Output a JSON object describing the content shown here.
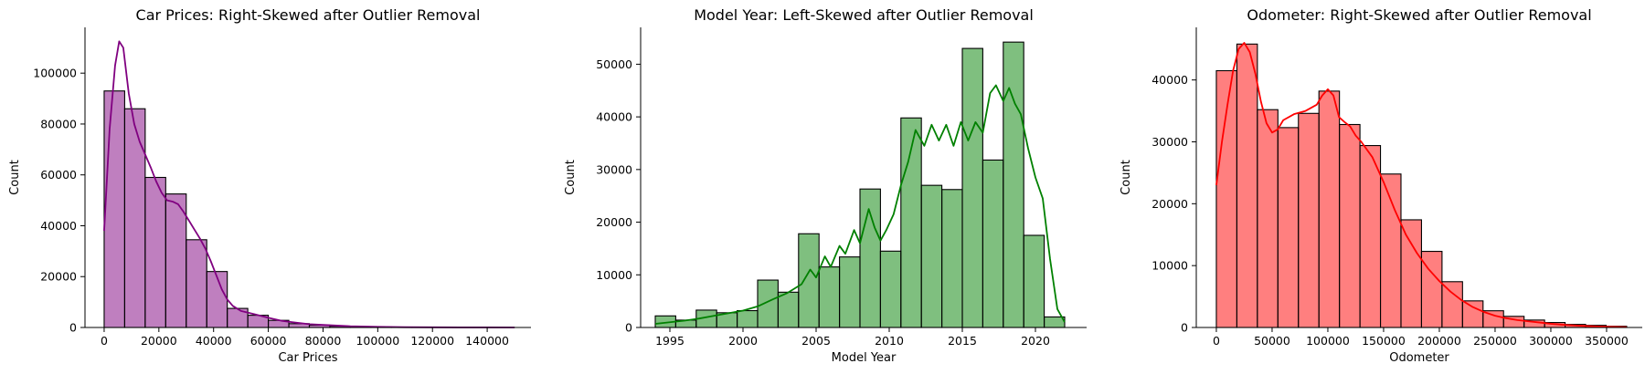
{
  "chart_data": [
    {
      "type": "histogram",
      "title": "Car Prices: Right-Skewed after Outlier Removal",
      "xlabel": "Car Prices",
      "ylabel": "Count",
      "color": "#800080",
      "kde": true,
      "xlim": [
        -7000,
        156000
      ],
      "ylim": [
        0,
        118000
      ],
      "xticks": [
        0,
        20000,
        40000,
        60000,
        80000,
        100000,
        120000,
        140000
      ],
      "yticks": [
        0,
        20000,
        40000,
        60000,
        80000,
        100000
      ],
      "bins": [
        0,
        7500,
        15000,
        22500,
        30000,
        37500,
        45000,
        52500,
        60000,
        67500,
        75000,
        82500,
        90000,
        97500,
        105000,
        112500,
        120000,
        127500,
        135000,
        142500,
        150000
      ],
      "counts": [
        93000,
        86000,
        59000,
        52500,
        34500,
        22000,
        7500,
        4800,
        2800,
        1500,
        900,
        500,
        300,
        200,
        100,
        80,
        50,
        40,
        30,
        20
      ],
      "kde_points": [
        [
          0,
          38000
        ],
        [
          2000,
          78000
        ],
        [
          4000,
          103000
        ],
        [
          5500,
          112500
        ],
        [
          7000,
          110000
        ],
        [
          9000,
          92000
        ],
        [
          11000,
          80000
        ],
        [
          13000,
          73000
        ],
        [
          15000,
          68000
        ],
        [
          17000,
          63000
        ],
        [
          19000,
          57500
        ],
        [
          21000,
          53000
        ],
        [
          23000,
          50000
        ],
        [
          25000,
          49500
        ],
        [
          27000,
          48500
        ],
        [
          29000,
          45500
        ],
        [
          31000,
          42000
        ],
        [
          33000,
          38500
        ],
        [
          35000,
          35000
        ],
        [
          37000,
          31000
        ],
        [
          39000,
          26000
        ],
        [
          41000,
          20500
        ],
        [
          43000,
          15000
        ],
        [
          45000,
          11000
        ],
        [
          47000,
          8500
        ],
        [
          50000,
          6500
        ],
        [
          55000,
          5200
        ],
        [
          60000,
          3800
        ],
        [
          65000,
          2600
        ],
        [
          70000,
          1900
        ],
        [
          75000,
          1300
        ],
        [
          80000,
          1000
        ],
        [
          90000,
          500
        ],
        [
          100000,
          250
        ],
        [
          110000,
          120
        ],
        [
          120000,
          60
        ],
        [
          130000,
          30
        ],
        [
          140000,
          15
        ],
        [
          150000,
          5
        ]
      ]
    },
    {
      "type": "histogram",
      "title": "Model Year: Left-Skewed after Outlier Removal",
      "xlabel": "Model Year",
      "ylabel": "Count",
      "color": "#008000",
      "kde": true,
      "xlim": [
        1993,
        2023.5
      ],
      "ylim": [
        0,
        57000
      ],
      "xticks": [
        1995,
        2000,
        2005,
        2010,
        2015,
        2020
      ],
      "yticks": [
        0,
        10000,
        20000,
        30000,
        40000,
        50000
      ],
      "bins": [
        1994,
        1995.4,
        1996.8,
        1998.2,
        1999.6,
        2001,
        2002.4,
        2003.8,
        2005.2,
        2006.6,
        2008,
        2009.4,
        2010.8,
        2012.2,
        2013.6,
        2015,
        2016.4,
        2017.8,
        2019.2,
        2020.6,
        2022
      ],
      "counts": [
        2200,
        1400,
        3300,
        2800,
        3200,
        9000,
        6700,
        17800,
        11500,
        13400,
        26300,
        14500,
        39800,
        27000,
        26200,
        53000,
        31800,
        54200,
        17500,
        2000
      ],
      "kde_points": [
        [
          1994,
          700
        ],
        [
          1995,
          1000
        ],
        [
          1996,
          1300
        ],
        [
          1997,
          1700
        ],
        [
          1998,
          2200
        ],
        [
          1999,
          2700
        ],
        [
          2000,
          3200
        ],
        [
          2001,
          4000
        ],
        [
          2002,
          5300
        ],
        [
          2003,
          6500
        ],
        [
          2004,
          8200
        ],
        [
          2004.6,
          11000
        ],
        [
          2005,
          9500
        ],
        [
          2005.6,
          13500
        ],
        [
          2006,
          11500
        ],
        [
          2006.6,
          15500
        ],
        [
          2007,
          14000
        ],
        [
          2007.6,
          18500
        ],
        [
          2008,
          16000
        ],
        [
          2008.6,
          22500
        ],
        [
          2009,
          19000
        ],
        [
          2009.4,
          16500
        ],
        [
          2009.8,
          18500
        ],
        [
          2010.3,
          21500
        ],
        [
          2010.8,
          27000
        ],
        [
          2011.3,
          31500
        ],
        [
          2011.8,
          37500
        ],
        [
          2012.4,
          34500
        ],
        [
          2012.9,
          38500
        ],
        [
          2013.4,
          35500
        ],
        [
          2013.9,
          38500
        ],
        [
          2014.4,
          34500
        ],
        [
          2014.9,
          39000
        ],
        [
          2015.4,
          35500
        ],
        [
          2015.9,
          39000
        ],
        [
          2016.4,
          37000
        ],
        [
          2016.9,
          44500
        ],
        [
          2017.3,
          46000
        ],
        [
          2017.8,
          43000
        ],
        [
          2018.2,
          45500
        ],
        [
          2018.6,
          42500
        ],
        [
          2019,
          40500
        ],
        [
          2019.5,
          34000
        ],
        [
          2020,
          28500
        ],
        [
          2020.5,
          24500
        ],
        [
          2021,
          13000
        ],
        [
          2021.5,
          3500
        ],
        [
          2022,
          1000
        ]
      ]
    },
    {
      "type": "histogram",
      "title": "Odometer: Right-Skewed after Outlier Removal",
      "xlabel": "Odometer",
      "ylabel": "Count",
      "color": "#ff0000",
      "kde": true,
      "xlim": [
        -18000,
        382000
      ],
      "ylim": [
        0,
        48500
      ],
      "xticks": [
        0,
        50000,
        100000,
        150000,
        200000,
        250000,
        300000,
        350000
      ],
      "yticks": [
        0,
        10000,
        20000,
        30000,
        40000
      ],
      "bins": [
        0,
        18400,
        36800,
        55200,
        73600,
        92000,
        110400,
        128800,
        147200,
        165600,
        184000,
        202400,
        220800,
        239200,
        257600,
        276000,
        294400,
        312800,
        331200,
        349600,
        368000
      ],
      "counts": [
        41500,
        45800,
        35200,
        32300,
        34600,
        38200,
        32800,
        29400,
        24800,
        17400,
        12300,
        7400,
        4300,
        2700,
        1800,
        1200,
        800,
        500,
        350,
        200
      ],
      "kde_points": [
        [
          0,
          23000
        ],
        [
          5000,
          30000
        ],
        [
          10000,
          36000
        ],
        [
          15000,
          41500
        ],
        [
          20000,
          45000
        ],
        [
          25000,
          46000
        ],
        [
          30000,
          44500
        ],
        [
          35000,
          41000
        ],
        [
          40000,
          36500
        ],
        [
          45000,
          33000
        ],
        [
          50000,
          31500
        ],
        [
          55000,
          32000
        ],
        [
          60000,
          33500
        ],
        [
          70000,
          34500
        ],
        [
          80000,
          35000
        ],
        [
          90000,
          36000
        ],
        [
          95000,
          37500
        ],
        [
          100000,
          38500
        ],
        [
          105000,
          37500
        ],
        [
          110000,
          34000
        ],
        [
          115000,
          33200
        ],
        [
          120000,
          32500
        ],
        [
          125000,
          31000
        ],
        [
          130000,
          30000
        ],
        [
          140000,
          27500
        ],
        [
          150000,
          23500
        ],
        [
          160000,
          19000
        ],
        [
          170000,
          15000
        ],
        [
          180000,
          12000
        ],
        [
          190000,
          9500
        ],
        [
          200000,
          7500
        ],
        [
          210000,
          5800
        ],
        [
          220000,
          4400
        ],
        [
          230000,
          3300
        ],
        [
          240000,
          2500
        ],
        [
          250000,
          1900
        ],
        [
          260000,
          1500
        ],
        [
          270000,
          1200
        ],
        [
          280000,
          1000
        ],
        [
          290000,
          800
        ],
        [
          300000,
          600
        ],
        [
          310000,
          450
        ],
        [
          320000,
          350
        ],
        [
          330000,
          250
        ],
        [
          340000,
          180
        ],
        [
          350000,
          120
        ],
        [
          360000,
          80
        ],
        [
          368000,
          50
        ]
      ]
    }
  ]
}
